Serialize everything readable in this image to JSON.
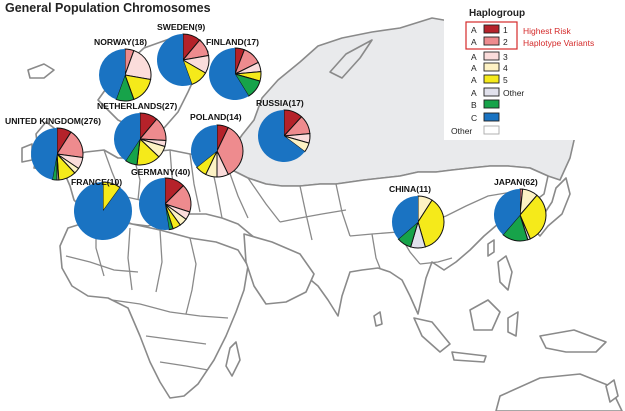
{
  "chart_data": {
    "type": "pie",
    "title": "General Population Chromosomes",
    "legend": {
      "title": "Haplogroup",
      "items": [
        {
          "group": "A",
          "label": "1",
          "color": "#b5222a"
        },
        {
          "group": "A",
          "label": "2",
          "color": "#ee8b8e"
        },
        {
          "group": "A",
          "label": "3",
          "color": "#fbdcdb"
        },
        {
          "group": "A",
          "label": "4",
          "color": "#fdf2c4"
        },
        {
          "group": "A",
          "label": "5",
          "color": "#f5ea1a"
        },
        {
          "group": "A",
          "label": "Other",
          "color": "#e1e1ec"
        },
        {
          "group": "B",
          "label": "",
          "color": "#17a34a"
        },
        {
          "group": "C",
          "label": "",
          "color": "#1a73c2"
        },
        {
          "group": "Other",
          "label": "",
          "color": "#ffffff"
        }
      ],
      "note_lines": [
        "Highest Risk",
        "Haplotype Variants"
      ],
      "note_color": "#d42a2a"
    },
    "series_order": [
      "A1",
      "A2",
      "A3",
      "A4",
      "A5",
      "A-Other",
      "B",
      "C",
      "Other"
    ],
    "pies": [
      {
        "label": "NORWAY(18)",
        "values": [
          0,
          1,
          4,
          0,
          3,
          0,
          2,
          8,
          0
        ]
      },
      {
        "label": "SWEDEN(9)",
        "values": [
          1,
          1,
          1,
          0,
          1,
          0,
          0,
          5,
          0
        ]
      },
      {
        "label": "FINLAND(17)",
        "values": [
          1,
          2,
          1,
          0,
          1,
          0,
          2,
          10,
          0
        ]
      },
      {
        "label": "NETHERLANDS(27)",
        "values": [
          3,
          4,
          1,
          2,
          4,
          0,
          2,
          11,
          0
        ]
      },
      {
        "label": "UNITED KINGDOM(276)",
        "values": [
          25,
          50,
          20,
          10,
          30,
          3,
          8,
          130,
          0
        ]
      },
      {
        "label": "POLAND(14)",
        "values": [
          1,
          5,
          1,
          1,
          1,
          0,
          0,
          5,
          0
        ]
      },
      {
        "label": "RUSSIA(17)",
        "values": [
          2,
          2,
          1,
          1,
          0,
          0,
          0,
          11,
          0
        ]
      },
      {
        "label": "FRANCE(10)",
        "values": [
          0,
          0,
          0,
          0,
          1,
          0,
          0,
          9,
          0
        ]
      },
      {
        "label": "GERMANY(40)",
        "values": [
          5,
          7,
          2,
          2,
          2,
          0,
          1,
          21,
          0
        ]
      },
      {
        "label": "CHINA(11)",
        "values": [
          0,
          0,
          0,
          1,
          4,
          1,
          1,
          4,
          0
        ]
      },
      {
        "label": "JAPAN(62)",
        "values": [
          0,
          1,
          0,
          6,
          20,
          1,
          10,
          24,
          0
        ]
      }
    ]
  }
}
